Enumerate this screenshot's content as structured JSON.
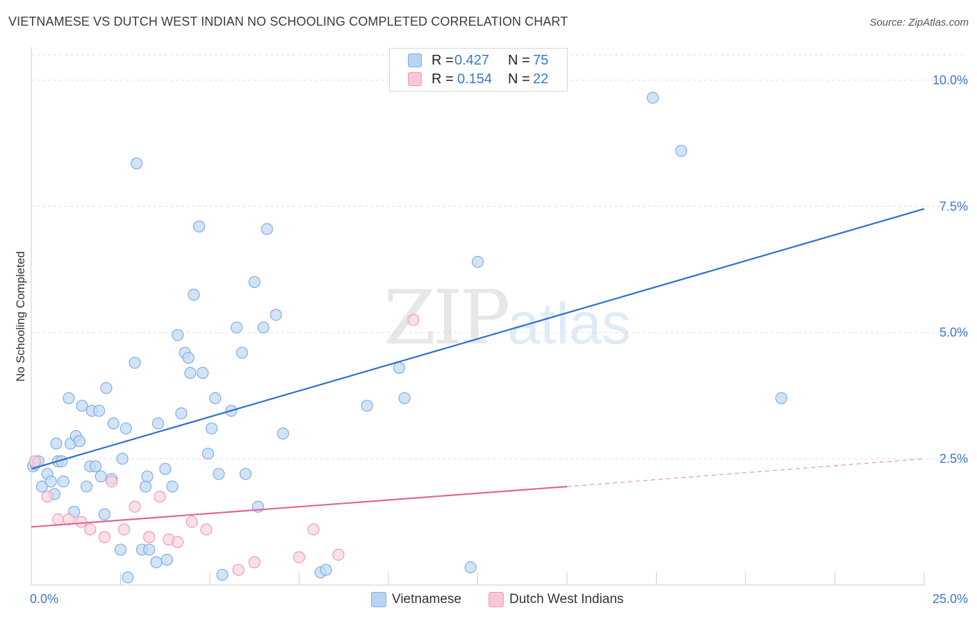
{
  "title": "VIETNAMESE VS DUTCH WEST INDIAN NO SCHOOLING COMPLETED CORRELATION CHART",
  "source": "Source: ZipAtlas.com",
  "watermark": {
    "part1": "ZIP",
    "part2": "atlas"
  },
  "legend": {
    "rows": [
      {
        "r_label": "R =",
        "r_value": "0.427",
        "n_label": "N =",
        "n_value": "75",
        "color": "#b9d3f3"
      },
      {
        "r_label": "R =",
        "r_value": "0.154",
        "n_label": "N =",
        "n_value": "22",
        "color": "#f8c7d6"
      }
    ]
  },
  "bottom_legend": {
    "series1": "Vietnamese",
    "series2": "Dutch West Indians"
  },
  "colors": {
    "blue_point_fill": "#c3d9f3",
    "blue_point_stroke": "#7eaee6",
    "blue_line": "#2e6fcd",
    "pink_point_fill": "#f9d3df",
    "pink_point_stroke": "#ee9ab4",
    "pink_line": "#e0658f",
    "grid": "#dddddd",
    "tick_label": "#3a78cc"
  },
  "chart_data": {
    "type": "scatter",
    "title": "VIETNAMESE VS DUTCH WEST INDIAN NO SCHOOLING COMPLETED CORRELATION CHART",
    "xlabel": "",
    "ylabel": "No Schooling Completed",
    "xlim": [
      0,
      25
    ],
    "ylim": [
      0,
      10.5
    ],
    "x_tick_labels": [
      "0.0%",
      "25.0%"
    ],
    "y_ticks": [
      2.5,
      5.0,
      7.5,
      10.0
    ],
    "y_tick_labels": [
      "2.5%",
      "5.0%",
      "7.5%",
      "10.0%"
    ],
    "x_minor_ticks": [
      0,
      2.5,
      5,
      7.5,
      10,
      12.5,
      15,
      17.5,
      20,
      22.5,
      25
    ],
    "series": [
      {
        "name": "Vietnamese",
        "R": 0.427,
        "N": 75,
        "trend": {
          "x": [
            0,
            25
          ],
          "y": [
            2.3,
            7.45
          ]
        },
        "points": [
          [
            0.05,
            2.35
          ],
          [
            0.12,
            2.4
          ],
          [
            0.2,
            2.45
          ],
          [
            0.3,
            1.95
          ],
          [
            0.45,
            2.2
          ],
          [
            0.55,
            2.05
          ],
          [
            0.65,
            1.8
          ],
          [
            0.7,
            2.8
          ],
          [
            0.75,
            2.45
          ],
          [
            0.85,
            2.45
          ],
          [
            0.9,
            2.05
          ],
          [
            1.05,
            3.7
          ],
          [
            1.1,
            2.8
          ],
          [
            1.2,
            1.45
          ],
          [
            1.25,
            2.95
          ],
          [
            1.35,
            2.85
          ],
          [
            1.42,
            3.55
          ],
          [
            1.55,
            1.95
          ],
          [
            1.65,
            2.35
          ],
          [
            1.7,
            3.45
          ],
          [
            1.8,
            2.35
          ],
          [
            1.9,
            3.45
          ],
          [
            1.95,
            2.15
          ],
          [
            2.05,
            1.4
          ],
          [
            2.1,
            3.9
          ],
          [
            2.25,
            2.1
          ],
          [
            2.3,
            3.2
          ],
          [
            2.5,
            0.7
          ],
          [
            2.55,
            2.5
          ],
          [
            2.65,
            3.1
          ],
          [
            2.7,
            0.15
          ],
          [
            2.9,
            4.4
          ],
          [
            2.95,
            8.35
          ],
          [
            3.1,
            0.7
          ],
          [
            3.2,
            1.95
          ],
          [
            3.25,
            2.15
          ],
          [
            3.3,
            0.7
          ],
          [
            3.5,
            0.45
          ],
          [
            3.55,
            3.2
          ],
          [
            3.75,
            2.3
          ],
          [
            3.8,
            0.5
          ],
          [
            3.95,
            1.95
          ],
          [
            4.1,
            4.95
          ],
          [
            4.2,
            3.4
          ],
          [
            4.3,
            4.6
          ],
          [
            4.4,
            4.5
          ],
          [
            4.45,
            4.2
          ],
          [
            4.55,
            5.75
          ],
          [
            4.7,
            7.1
          ],
          [
            4.8,
            4.2
          ],
          [
            4.95,
            2.6
          ],
          [
            5.05,
            3.1
          ],
          [
            5.15,
            3.7
          ],
          [
            5.25,
            2.2
          ],
          [
            5.35,
            0.2
          ],
          [
            5.6,
            3.45
          ],
          [
            5.75,
            5.1
          ],
          [
            5.9,
            4.6
          ],
          [
            6.0,
            2.2
          ],
          [
            6.25,
            6.0
          ],
          [
            6.35,
            1.55
          ],
          [
            6.5,
            5.1
          ],
          [
            6.6,
            7.05
          ],
          [
            6.85,
            5.35
          ],
          [
            7.05,
            3.0
          ],
          [
            8.1,
            0.25
          ],
          [
            8.25,
            0.3
          ],
          [
            9.4,
            3.55
          ],
          [
            10.3,
            4.3
          ],
          [
            10.45,
            3.7
          ],
          [
            12.3,
            0.35
          ],
          [
            12.5,
            6.4
          ],
          [
            17.4,
            9.65
          ],
          [
            18.2,
            8.6
          ],
          [
            21.0,
            3.7
          ]
        ]
      },
      {
        "name": "Dutch West Indians",
        "R": 0.154,
        "N": 22,
        "trend": {
          "x": [
            0,
            15
          ],
          "y": [
            1.15,
            1.95
          ]
        },
        "trend_dashed": {
          "x": [
            15,
            25
          ],
          "y": [
            1.95,
            2.5
          ]
        },
        "points": [
          [
            0.1,
            2.45
          ],
          [
            0.45,
            1.75
          ],
          [
            0.75,
            1.3
          ],
          [
            1.05,
            1.3
          ],
          [
            1.4,
            1.25
          ],
          [
            1.65,
            1.1
          ],
          [
            2.05,
            0.95
          ],
          [
            2.25,
            2.05
          ],
          [
            2.6,
            1.1
          ],
          [
            2.9,
            1.55
          ],
          [
            3.3,
            0.95
          ],
          [
            3.6,
            1.75
          ],
          [
            3.85,
            0.9
          ],
          [
            4.1,
            0.85
          ],
          [
            4.5,
            1.25
          ],
          [
            4.9,
            1.1
          ],
          [
            5.8,
            0.3
          ],
          [
            6.25,
            0.45
          ],
          [
            7.5,
            0.55
          ],
          [
            7.9,
            1.1
          ],
          [
            8.6,
            0.6
          ],
          [
            10.7,
            5.25
          ]
        ]
      }
    ]
  }
}
